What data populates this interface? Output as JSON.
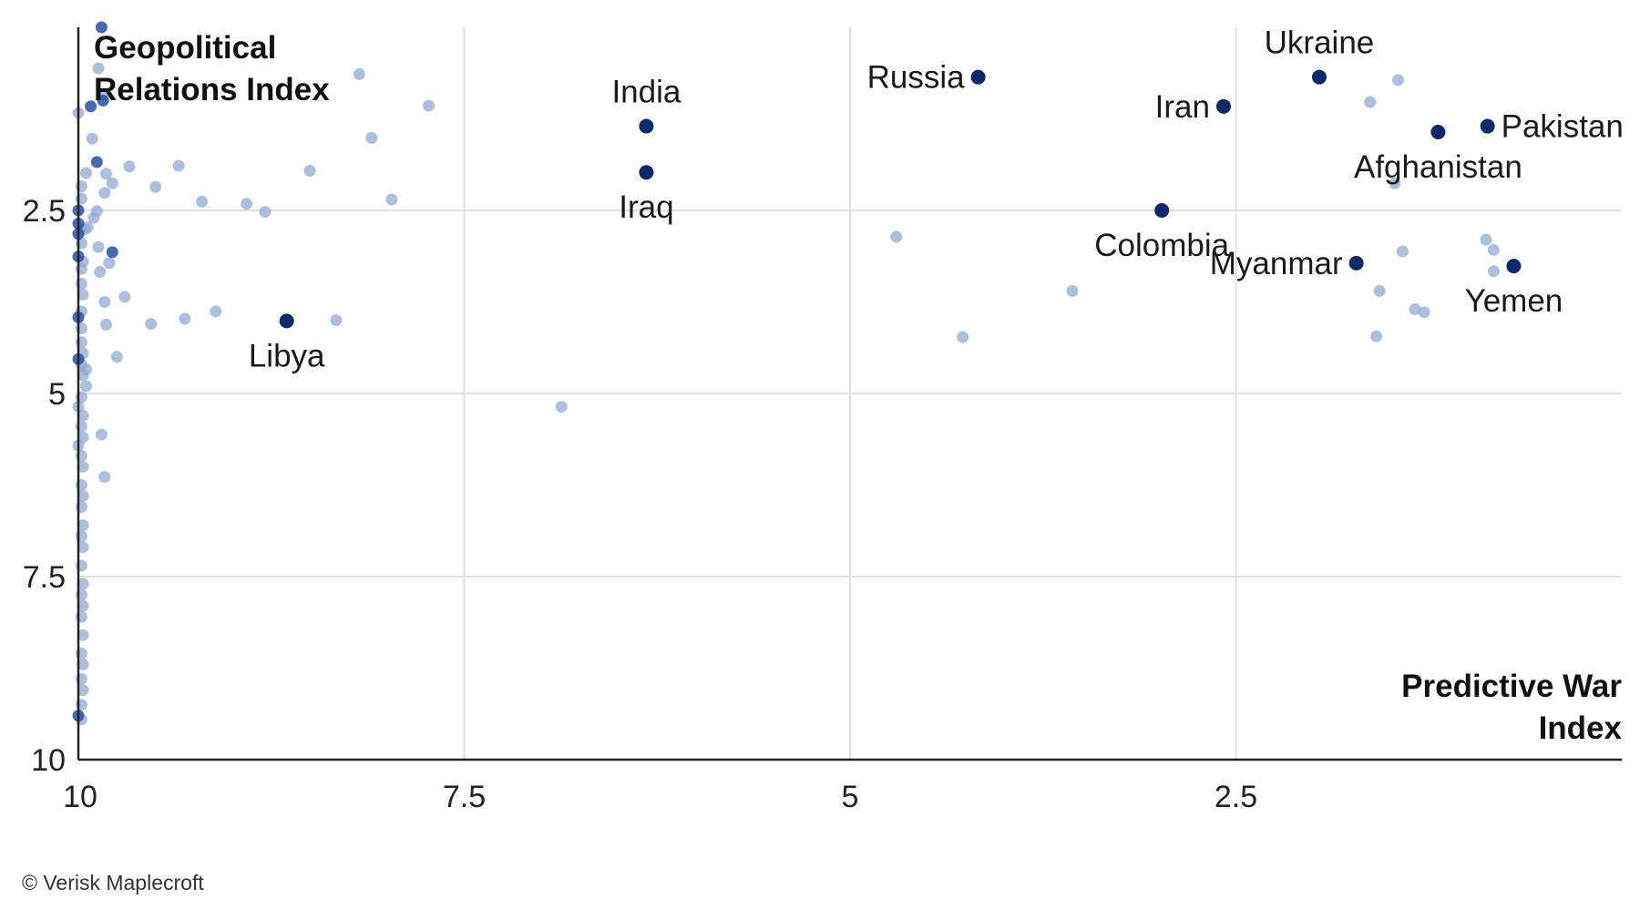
{
  "chart_data": {
    "type": "scatter",
    "x_axis": {
      "title": "Predictive War Index",
      "range": [
        10,
        0
      ],
      "reversed": true,
      "ticks": [
        10,
        7.5,
        5,
        2.5
      ],
      "tick_labels": [
        "10",
        "7.5",
        "5",
        "2.5"
      ]
    },
    "y_axis": {
      "title": "Geopolitical Relations Index",
      "range": [
        0,
        10
      ],
      "reversed": true,
      "ticks": [
        2.5,
        5,
        7.5,
        10
      ],
      "tick_labels": [
        "2.5",
        "5",
        "7.5",
        "10"
      ]
    },
    "grid": true,
    "colors": {
      "highlight": "#0b2a6b",
      "background_points": "#8ea6d3",
      "axis": "#222222",
      "grid": "#e0e0e0"
    },
    "highlighted": [
      {
        "name": "India",
        "x": 6.32,
        "y": 1.35,
        "label_pos": "above"
      },
      {
        "name": "Iraq",
        "x": 6.32,
        "y": 1.98,
        "label_pos": "below"
      },
      {
        "name": "Russia",
        "x": 4.17,
        "y": 0.68,
        "label_pos": "left"
      },
      {
        "name": "Ukraine",
        "x": 1.96,
        "y": 0.68,
        "label_pos": "above"
      },
      {
        "name": "Iran",
        "x": 2.58,
        "y": 1.08,
        "label_pos": "left"
      },
      {
        "name": "Pakistan",
        "x": 0.87,
        "y": 1.35,
        "label_pos": "right"
      },
      {
        "name": "Afghanistan",
        "x": 1.19,
        "y": 1.43,
        "label_pos": "below"
      },
      {
        "name": "Colombia",
        "x": 2.98,
        "y": 2.5,
        "label_pos": "below"
      },
      {
        "name": "Myanmar",
        "x": 1.72,
        "y": 3.22,
        "label_pos": "left"
      },
      {
        "name": "Yemen",
        "x": 0.7,
        "y": 3.26,
        "label_pos": "below"
      },
      {
        "name": "Libya",
        "x": 8.65,
        "y": 4.01,
        "label_pos": "below"
      }
    ],
    "others": [
      [
        9.87,
        0.56
      ],
      [
        10.0,
        1.17
      ],
      [
        9.95,
        1.99
      ],
      [
        9.84,
        0.92
      ],
      [
        9.91,
        1.52
      ],
      [
        9.82,
        2.0
      ],
      [
        9.78,
        2.13
      ],
      [
        9.83,
        2.26
      ],
      [
        9.88,
        2.51
      ],
      [
        9.9,
        2.6
      ],
      [
        9.94,
        2.73
      ],
      [
        9.87,
        3.0
      ],
      [
        9.8,
        3.22
      ],
      [
        9.86,
        3.34
      ],
      [
        9.98,
        2.17
      ],
      [
        9.98,
        2.34
      ],
      [
        9.96,
        2.76
      ],
      [
        9.98,
        3.3
      ],
      [
        9.98,
        3.88
      ],
      [
        9.98,
        4.11
      ],
      [
        9.95,
        4.9
      ],
      [
        10.0,
        5.18
      ],
      [
        10.0,
        5.71
      ],
      [
        9.82,
        4.06
      ],
      [
        9.75,
        4.5
      ],
      [
        9.83,
        3.75
      ],
      [
        9.7,
        3.68
      ],
      [
        9.85,
        5.56
      ],
      [
        9.83,
        6.14
      ],
      [
        9.67,
        1.9
      ],
      [
        9.35,
        1.89
      ],
      [
        9.5,
        2.18
      ],
      [
        9.53,
        4.05
      ],
      [
        9.31,
        3.98
      ],
      [
        9.11,
        3.88
      ],
      [
        9.2,
        2.38
      ],
      [
        8.91,
        2.41
      ],
      [
        8.79,
        2.52
      ],
      [
        8.5,
        1.96
      ],
      [
        8.33,
        4.0
      ],
      [
        8.1,
        1.51
      ],
      [
        7.97,
        2.35
      ],
      [
        8.18,
        0.64
      ],
      [
        7.73,
        1.07
      ],
      [
        6.87,
        5.18
      ],
      [
        4.7,
        2.86
      ],
      [
        4.27,
        4.23
      ],
      [
        3.56,
        3.6
      ],
      [
        1.45,
        0.72
      ],
      [
        1.63,
        1.02
      ],
      [
        1.47,
        2.13
      ],
      [
        1.42,
        3.06
      ],
      [
        1.57,
        3.6
      ],
      [
        1.59,
        4.22
      ],
      [
        1.34,
        3.85
      ],
      [
        1.28,
        3.89
      ],
      [
        0.88,
        2.9
      ],
      [
        0.83,
        3.04
      ],
      [
        0.83,
        3.33
      ],
      [
        9.95,
        4.67
      ],
      [
        9.98,
        2.95
      ],
      [
        9.97,
        3.2
      ],
      [
        9.98,
        3.5
      ],
      [
        9.97,
        3.65
      ],
      [
        9.98,
        4.3
      ],
      [
        9.97,
        4.45
      ],
      [
        9.98,
        4.6
      ],
      [
        9.97,
        4.75
      ],
      [
        9.98,
        5.05
      ],
      [
        9.97,
        5.3
      ],
      [
        9.98,
        5.45
      ],
      [
        9.97,
        5.6
      ],
      [
        9.98,
        5.85
      ],
      [
        9.97,
        6.0
      ],
      [
        9.98,
        6.25
      ],
      [
        9.97,
        6.4
      ],
      [
        9.98,
        6.55
      ],
      [
        9.97,
        6.8
      ],
      [
        9.98,
        6.95
      ],
      [
        9.97,
        7.1
      ],
      [
        9.98,
        7.35
      ],
      [
        9.97,
        7.6
      ],
      [
        9.98,
        7.75
      ],
      [
        9.97,
        7.9
      ],
      [
        9.98,
        8.05
      ],
      [
        9.97,
        8.3
      ],
      [
        9.98,
        8.55
      ],
      [
        9.97,
        8.7
      ],
      [
        9.98,
        8.9
      ],
      [
        9.97,
        9.05
      ],
      [
        9.98,
        9.25
      ],
      [
        9.98,
        9.45
      ]
    ],
    "others_dark": [
      [
        9.85,
        0.0
      ],
      [
        9.84,
        1.0
      ],
      [
        9.88,
        1.84
      ],
      [
        9.78,
        3.07
      ],
      [
        10.0,
        2.68
      ],
      [
        10.0,
        3.96
      ],
      [
        10.0,
        4.53
      ],
      [
        10.0,
        2.5
      ],
      [
        10.0,
        3.13
      ],
      [
        10.0,
        9.4
      ],
      [
        9.92,
        1.08
      ],
      [
        10.0,
        2.82
      ]
    ]
  },
  "credit": "© Verisk Maplecroft"
}
